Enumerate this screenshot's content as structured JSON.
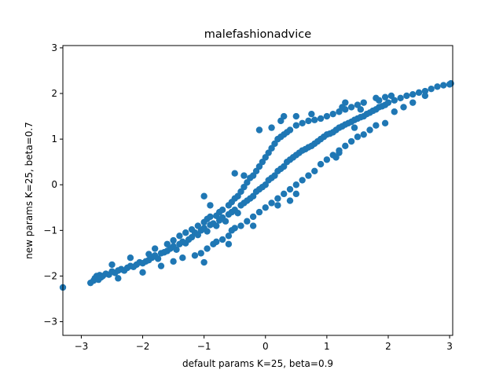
{
  "chart_data": {
    "type": "scatter",
    "title": "malefashionadvice",
    "xlabel": "default params K=25, beta=0.9",
    "ylabel": "new params K=25, beta=0.7",
    "xlim": [
      -3.3,
      3.05
    ],
    "ylim": [
      -3.3,
      3.05
    ],
    "xticks": [
      -3,
      -2,
      -1,
      0,
      1,
      2,
      3
    ],
    "yticks": [
      -3,
      -2,
      -1,
      0,
      1,
      2,
      3
    ],
    "xtick_labels": [
      "−3",
      "−2",
      "−1",
      "0",
      "1",
      "2",
      "3"
    ],
    "ytick_labels": [
      "−3",
      "−2",
      "−1",
      "0",
      "1",
      "2",
      "3"
    ],
    "grid": false,
    "color": "#1f77b4",
    "series": [
      {
        "points": [
          [
            -3.3,
            -2.25
          ],
          [
            -2.85,
            -2.15
          ],
          [
            -2.8,
            -2.1
          ],
          [
            -2.78,
            -2.05
          ],
          [
            -2.75,
            -2.0
          ],
          [
            -2.72,
            -2.08
          ],
          [
            -2.7,
            -1.98
          ],
          [
            -2.68,
            -2.03
          ],
          [
            -2.65,
            -2.0
          ],
          [
            -2.6,
            -1.95
          ],
          [
            -2.55,
            -1.97
          ],
          [
            -2.5,
            -1.9
          ],
          [
            -2.45,
            -1.93
          ],
          [
            -2.4,
            -1.88
          ],
          [
            -2.35,
            -1.85
          ],
          [
            -2.3,
            -1.88
          ],
          [
            -2.25,
            -1.82
          ],
          [
            -2.2,
            -1.78
          ],
          [
            -2.15,
            -1.8
          ],
          [
            -2.1,
            -1.75
          ],
          [
            -2.05,
            -1.7
          ],
          [
            -2.0,
            -1.72
          ],
          [
            -1.95,
            -1.68
          ],
          [
            -1.9,
            -1.65
          ],
          [
            -1.85,
            -1.6
          ],
          [
            -1.8,
            -1.55
          ],
          [
            -1.75,
            -1.62
          ],
          [
            -1.7,
            -1.5
          ],
          [
            -1.65,
            -1.48
          ],
          [
            -1.6,
            -1.45
          ],
          [
            -1.55,
            -1.4
          ],
          [
            -1.5,
            -1.35
          ],
          [
            -1.45,
            -1.42
          ],
          [
            -1.4,
            -1.3
          ],
          [
            -1.35,
            -1.25
          ],
          [
            -1.3,
            -1.28
          ],
          [
            -1.25,
            -1.2
          ],
          [
            -1.2,
            -1.15
          ],
          [
            -1.15,
            -1.05
          ],
          [
            -1.1,
            -1.1
          ],
          [
            -1.05,
            -1.0
          ],
          [
            -1.0,
            -0.95
          ],
          [
            -0.95,
            -1.02
          ],
          [
            -0.9,
            -0.88
          ],
          [
            -0.85,
            -0.85
          ],
          [
            -0.8,
            -0.9
          ],
          [
            -0.75,
            -0.78
          ],
          [
            -0.7,
            -0.72
          ],
          [
            -0.65,
            -0.8
          ],
          [
            -0.6,
            -0.65
          ],
          [
            -0.55,
            -0.6
          ],
          [
            -0.5,
            -0.55
          ],
          [
            -0.45,
            -0.62
          ],
          [
            -0.4,
            -0.45
          ],
          [
            -0.35,
            -0.4
          ],
          [
            -0.3,
            -0.35
          ],
          [
            -0.25,
            -0.3
          ],
          [
            -0.2,
            -0.25
          ],
          [
            -0.15,
            -0.15
          ],
          [
            -0.1,
            -0.1
          ],
          [
            -0.05,
            -0.05
          ],
          [
            0.0,
            0.0
          ],
          [
            0.05,
            0.1
          ],
          [
            0.1,
            0.15
          ],
          [
            0.15,
            0.2
          ],
          [
            0.2,
            0.3
          ],
          [
            0.25,
            0.35
          ],
          [
            0.3,
            0.4
          ],
          [
            0.35,
            0.5
          ],
          [
            0.4,
            0.55
          ],
          [
            0.45,
            0.6
          ],
          [
            0.5,
            0.65
          ],
          [
            0.55,
            0.7
          ],
          [
            0.6,
            0.75
          ],
          [
            0.65,
            0.78
          ],
          [
            0.7,
            0.82
          ],
          [
            0.75,
            0.85
          ],
          [
            0.8,
            0.9
          ],
          [
            0.85,
            0.95
          ],
          [
            0.9,
            1.0
          ],
          [
            0.95,
            1.05
          ],
          [
            1.0,
            1.1
          ],
          [
            1.05,
            1.12
          ],
          [
            1.1,
            1.15
          ],
          [
            1.15,
            1.2
          ],
          [
            1.2,
            1.25
          ],
          [
            1.25,
            1.28
          ],
          [
            1.3,
            1.32
          ],
          [
            1.35,
            1.35
          ],
          [
            1.4,
            1.38
          ],
          [
            1.45,
            1.42
          ],
          [
            1.5,
            1.45
          ],
          [
            1.55,
            1.48
          ],
          [
            1.6,
            1.5
          ],
          [
            1.65,
            1.55
          ],
          [
            1.7,
            1.58
          ],
          [
            1.75,
            1.62
          ],
          [
            1.8,
            1.65
          ],
          [
            1.85,
            1.7
          ],
          [
            1.9,
            1.72
          ],
          [
            1.95,
            1.75
          ],
          [
            2.0,
            1.8
          ],
          [
            2.1,
            1.85
          ],
          [
            2.2,
            1.9
          ],
          [
            2.3,
            1.95
          ],
          [
            2.4,
            1.98
          ],
          [
            2.5,
            2.02
          ],
          [
            2.6,
            2.05
          ],
          [
            2.7,
            2.1
          ],
          [
            2.8,
            2.15
          ],
          [
            2.9,
            2.18
          ],
          [
            3.0,
            2.2
          ],
          [
            3.02,
            2.22
          ],
          [
            -2.5,
            -1.75
          ],
          [
            -2.2,
            -1.6
          ],
          [
            -1.9,
            -1.52
          ],
          [
            -1.8,
            -1.4
          ],
          [
            -1.6,
            -1.3
          ],
          [
            -1.5,
            -1.22
          ],
          [
            -1.4,
            -1.12
          ],
          [
            -1.3,
            -1.05
          ],
          [
            -1.2,
            -0.98
          ],
          [
            -1.1,
            -0.9
          ],
          [
            -1.0,
            -0.82
          ],
          [
            -0.95,
            -0.75
          ],
          [
            -0.9,
            -0.7
          ],
          [
            -0.8,
            -0.68
          ],
          [
            -0.75,
            -0.6
          ],
          [
            -0.7,
            -0.55
          ],
          [
            -0.6,
            -0.45
          ],
          [
            -0.55,
            -0.38
          ],
          [
            -0.5,
            -0.3
          ],
          [
            -0.45,
            -0.25
          ],
          [
            -0.4,
            -0.15
          ],
          [
            -0.35,
            -0.05
          ],
          [
            -0.3,
            0.05
          ],
          [
            -0.25,
            0.15
          ],
          [
            -0.2,
            0.2
          ],
          [
            -0.15,
            0.3
          ],
          [
            -0.1,
            0.4
          ],
          [
            -0.05,
            0.5
          ],
          [
            0.0,
            0.6
          ],
          [
            0.05,
            0.7
          ],
          [
            0.1,
            0.8
          ],
          [
            0.15,
            0.9
          ],
          [
            0.2,
            1.0
          ],
          [
            0.25,
            1.05
          ],
          [
            0.3,
            1.1
          ],
          [
            0.35,
            1.15
          ],
          [
            0.4,
            1.2
          ],
          [
            0.5,
            1.3
          ],
          [
            0.6,
            1.35
          ],
          [
            0.7,
            1.4
          ],
          [
            0.8,
            1.42
          ],
          [
            0.9,
            1.45
          ],
          [
            1.0,
            1.5
          ],
          [
            1.1,
            1.55
          ],
          [
            1.2,
            1.6
          ],
          [
            1.3,
            1.65
          ],
          [
            1.4,
            1.7
          ],
          [
            1.5,
            1.75
          ],
          [
            1.6,
            1.8
          ],
          [
            1.8,
            1.9
          ],
          [
            1.95,
            1.92
          ],
          [
            2.05,
            1.95
          ],
          [
            -2.4,
            -2.05
          ],
          [
            -2.0,
            -1.92
          ],
          [
            -1.7,
            -1.78
          ],
          [
            -1.5,
            -1.68
          ],
          [
            -1.35,
            -1.6
          ],
          [
            -1.15,
            -1.55
          ],
          [
            -1.05,
            -1.5
          ],
          [
            -0.95,
            -1.4
          ],
          [
            -0.85,
            -1.3
          ],
          [
            -0.7,
            -1.2
          ],
          [
            -0.6,
            -1.12
          ],
          [
            -0.55,
            -1.0
          ],
          [
            -0.4,
            -0.9
          ],
          [
            -0.3,
            -0.8
          ],
          [
            -0.2,
            -0.7
          ],
          [
            -0.1,
            -0.6
          ],
          [
            0.0,
            -0.5
          ],
          [
            0.1,
            -0.4
          ],
          [
            0.2,
            -0.3
          ],
          [
            0.3,
            -0.2
          ],
          [
            0.4,
            -0.1
          ],
          [
            0.5,
            0.0
          ],
          [
            0.6,
            0.1
          ],
          [
            0.7,
            0.2
          ],
          [
            0.8,
            0.3
          ],
          [
            0.9,
            0.45
          ],
          [
            1.0,
            0.55
          ],
          [
            1.1,
            0.65
          ],
          [
            1.2,
            0.75
          ],
          [
            1.3,
            0.85
          ],
          [
            1.4,
            0.95
          ],
          [
            1.5,
            1.05
          ],
          [
            1.6,
            1.1
          ],
          [
            1.7,
            1.2
          ],
          [
            1.8,
            1.3
          ],
          [
            1.95,
            1.35
          ],
          [
            2.1,
            1.6
          ],
          [
            2.25,
            1.7
          ],
          [
            2.4,
            1.8
          ],
          [
            2.6,
            1.95
          ],
          [
            -1.0,
            -1.7
          ],
          [
            -0.8,
            -1.25
          ],
          [
            -0.6,
            -1.3
          ],
          [
            -0.5,
            -0.95
          ],
          [
            -0.2,
            -0.9
          ],
          [
            0.2,
            -0.45
          ],
          [
            0.4,
            -0.35
          ],
          [
            0.5,
            -0.2
          ],
          [
            1.2,
            0.7
          ],
          [
            1.15,
            0.6
          ],
          [
            -1.0,
            -0.25
          ],
          [
            -0.9,
            -0.45
          ],
          [
            -0.5,
            0.25
          ],
          [
            -0.35,
            0.2
          ],
          [
            0.25,
            1.4
          ],
          [
            0.5,
            1.5
          ],
          [
            0.75,
            1.55
          ],
          [
            1.25,
            1.7
          ],
          [
            1.3,
            1.8
          ],
          [
            1.55,
            1.65
          ],
          [
            1.85,
            1.85
          ],
          [
            0.1,
            1.25
          ],
          [
            -0.1,
            1.2
          ],
          [
            0.3,
            1.5
          ],
          [
            1.45,
            1.25
          ]
        ]
      }
    ]
  }
}
